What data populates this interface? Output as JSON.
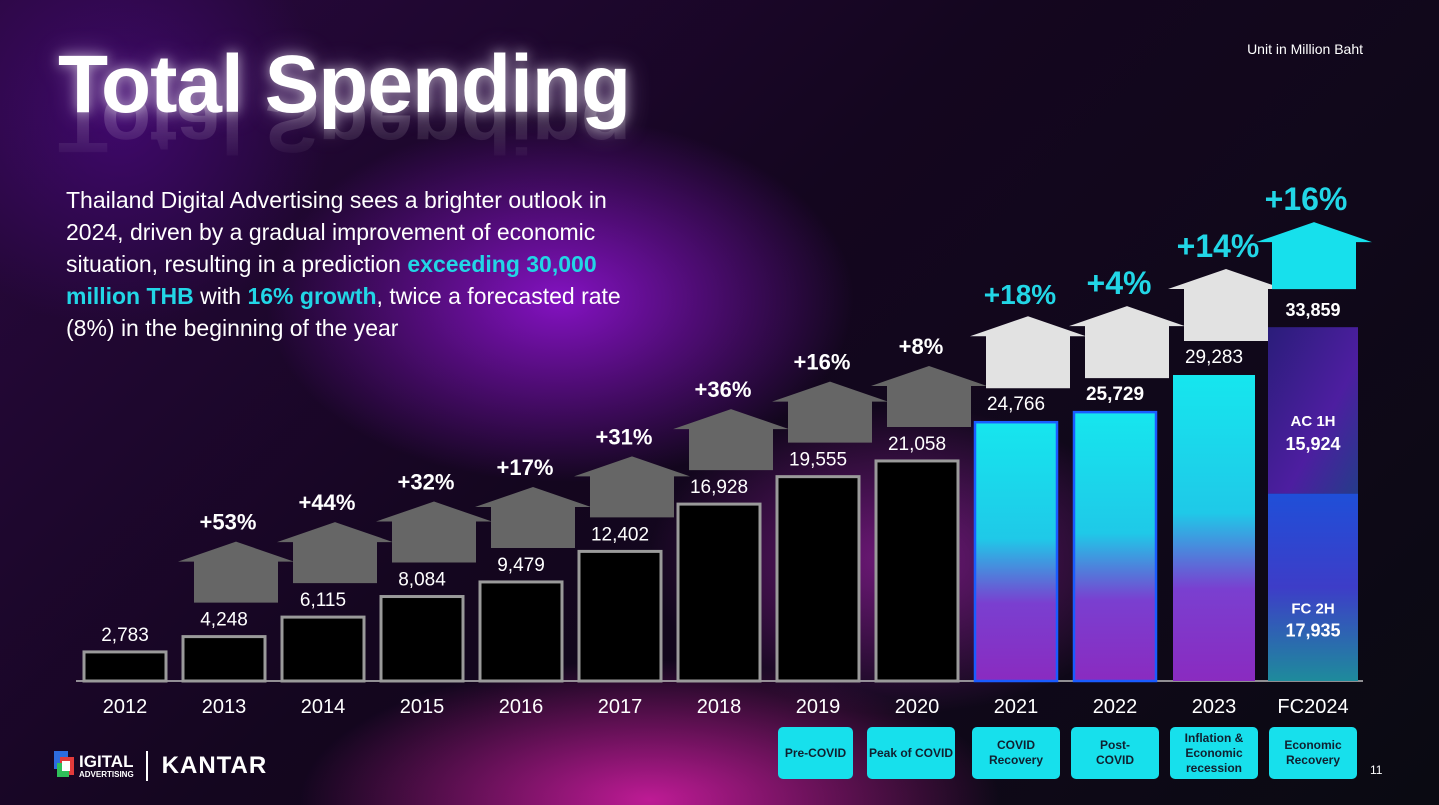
{
  "title": "Total Spending",
  "description": {
    "p1": "Thailand Digital Advertising sees a brighter outlook in 2024, driven by a gradual improvement of economic situation, resulting in a prediction ",
    "h1": "exceeding 30,000 million THB",
    "p2": " with ",
    "h2": "16% growth",
    "p3": ", twice a forecasted rate (8%) in the beginning of the year"
  },
  "unit_note": "Unit in Million Baht",
  "page_number": "11",
  "footer": {
    "logo_line1": "IGITAL",
    "logo_line2": "ADVERTISING",
    "partner": "KANTAR"
  },
  "colors": {
    "cyan": "#17e0ec",
    "dark_bar": "#000000",
    "grey_arrow": "#666666",
    "light_arrow": "#e0e0e0"
  },
  "chart_data": {
    "type": "bar",
    "categories": [
      "2012",
      "2013",
      "2014",
      "2015",
      "2016",
      "2017",
      "2018",
      "2019",
      "2020",
      "2021",
      "2022",
      "2023",
      "FC2024"
    ],
    "values": [
      2783,
      4248,
      6115,
      8084,
      9479,
      12402,
      16928,
      19555,
      21058,
      24766,
      25729,
      29283,
      33859
    ],
    "value_labels": [
      "2,783",
      "4,248",
      "6,115",
      "8,084",
      "9,479",
      "12,402",
      "16,928",
      "19,555",
      "21,058",
      "24,766",
      "25,729",
      "29,283",
      "33,859"
    ],
    "growth": [
      null,
      "+53%",
      "+44%",
      "+32%",
      "+17%",
      "+31%",
      "+36%",
      "+16%",
      "+8%",
      "+18%",
      "+4%",
      "+14%",
      "+16%"
    ],
    "stacked_2024": [
      {
        "name": "FC 2H",
        "value": 17935,
        "label": "17,935"
      },
      {
        "name": "AC 1H",
        "value": 15924,
        "label": "15,924"
      }
    ],
    "phases": [
      {
        "label": "Pre-COVID",
        "categories": [
          "2019"
        ]
      },
      {
        "label": "Peak of COVID",
        "categories": [
          "2020"
        ]
      },
      {
        "label": "COVID\nRecovery",
        "categories": [
          "2021"
        ]
      },
      {
        "label": "Post-\nCOVID",
        "categories": [
          "2022"
        ]
      },
      {
        "label": "Inflation &\nEconomic\nrecession",
        "categories": [
          "2023"
        ]
      },
      {
        "label": "Economic\nRecovery",
        "categories": [
          "FC2024"
        ]
      }
    ],
    "ylim": [
      0,
      45000
    ],
    "grid": false,
    "xlabel": "",
    "ylabel": ""
  }
}
